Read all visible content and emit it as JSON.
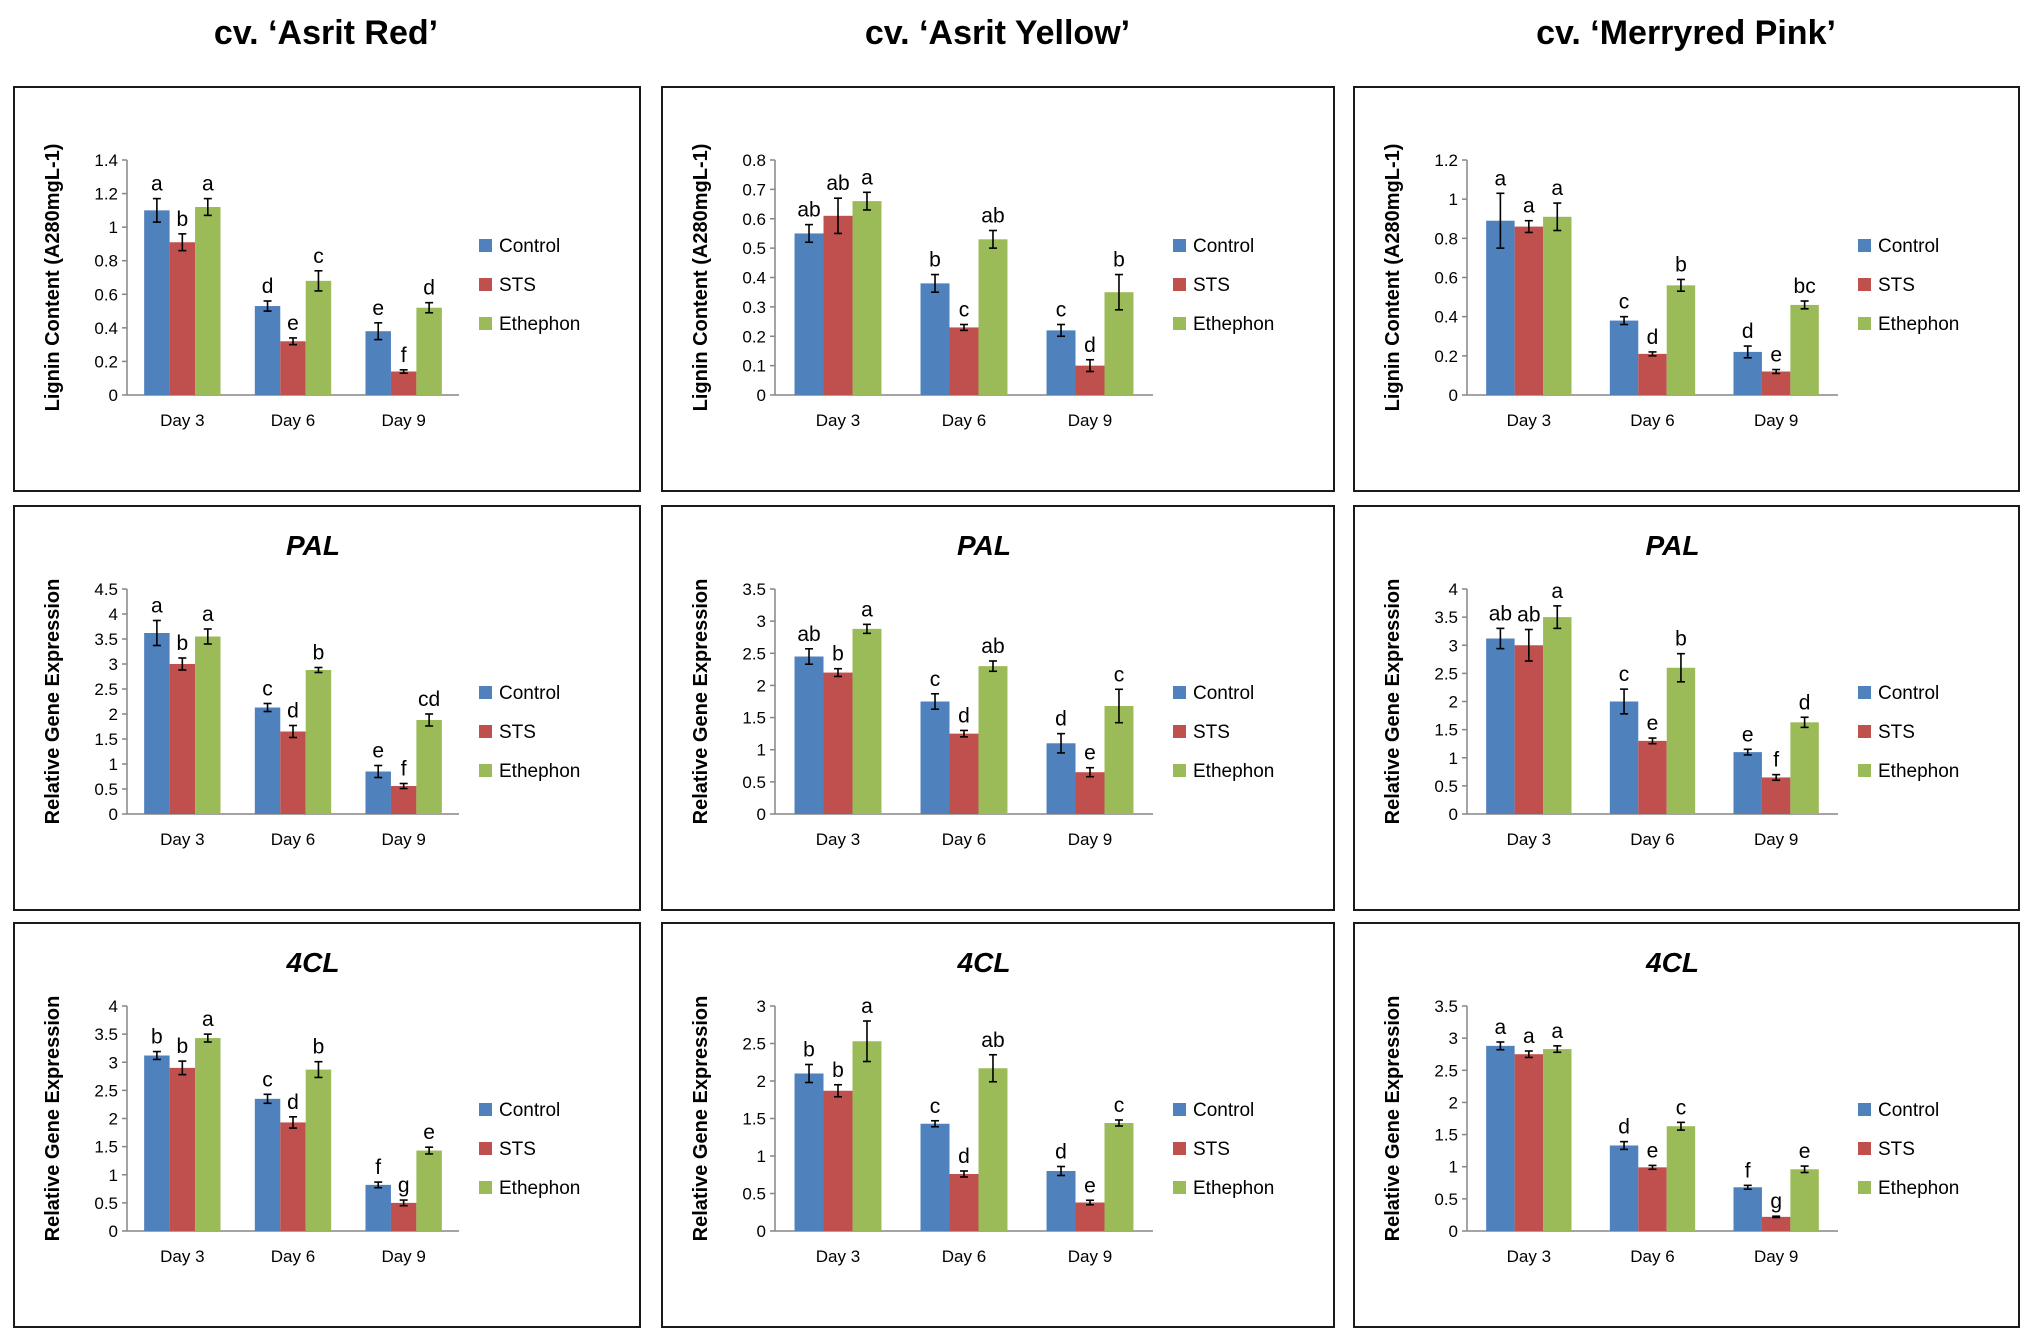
{
  "column_titles": [
    "cv. ‘Asrit Red’",
    "cv. ‘Asrit Yellow’",
    "cv. ‘Merryred Pink’"
  ],
  "legend": [
    "Control",
    "STS",
    "Ethephon"
  ],
  "colors": {
    "Control": "#4f81bd",
    "STS": "#c0504d",
    "Ethephon": "#9bbb59"
  },
  "chart_data": [
    {
      "type": "bar",
      "cultivar": "cv. ‘Asrit Red’",
      "title": "",
      "ylabel": "Lignin Content (A280mgL-1)",
      "xlabel": "",
      "categories": [
        "Day 3",
        "Day 6",
        "Day 9"
      ],
      "ylim": [
        0,
        1.4
      ],
      "ytick_step": 0.2,
      "ytick_labels": [
        "0",
        "0.2",
        "0.4",
        "0.6",
        "0.8",
        "1",
        "1.2",
        "1.4"
      ],
      "series": [
        {
          "name": "Control",
          "values": [
            1.1,
            0.53,
            0.38
          ],
          "errors": [
            0.07,
            0.03,
            0.05
          ],
          "letters": [
            "a",
            "d",
            "e"
          ]
        },
        {
          "name": "STS",
          "values": [
            0.91,
            0.32,
            0.14
          ],
          "errors": [
            0.05,
            0.02,
            0.01
          ],
          "letters": [
            "b",
            "e",
            "f"
          ]
        },
        {
          "name": "Ethephon",
          "values": [
            1.12,
            0.68,
            0.52
          ],
          "errors": [
            0.05,
            0.06,
            0.03
          ],
          "letters": [
            "a",
            "c",
            "d"
          ]
        }
      ]
    },
    {
      "type": "bar",
      "cultivar": "cv. ‘Asrit Yellow’",
      "title": "",
      "ylabel": "Lignin Content (A280mgL-1)",
      "xlabel": "",
      "categories": [
        "Day 3",
        "Day 6",
        "Day 9"
      ],
      "ylim": [
        0,
        0.8
      ],
      "ytick_step": 0.1,
      "ytick_labels": [
        "0",
        "0.1",
        "0.2",
        "0.3",
        "0.4",
        "0.5",
        "0.6",
        "0.7",
        "0.8"
      ],
      "series": [
        {
          "name": "Control",
          "values": [
            0.55,
            0.38,
            0.22
          ],
          "errors": [
            0.03,
            0.03,
            0.02
          ],
          "letters": [
            "ab",
            "b",
            "c"
          ]
        },
        {
          "name": "STS",
          "values": [
            0.61,
            0.23,
            0.1
          ],
          "errors": [
            0.06,
            0.01,
            0.02
          ],
          "letters": [
            "ab",
            "c",
            "d"
          ]
        },
        {
          "name": "Ethephon",
          "values": [
            0.66,
            0.53,
            0.35
          ],
          "errors": [
            0.03,
            0.03,
            0.06
          ],
          "letters": [
            "a",
            "ab",
            "b"
          ]
        }
      ]
    },
    {
      "type": "bar",
      "cultivar": "cv. ‘Merryred Pink’",
      "title": "",
      "ylabel": "Lignin Content (A280mgL-1)",
      "xlabel": "",
      "categories": [
        "Day 3",
        "Day 6",
        "Day 9"
      ],
      "ylim": [
        0,
        1.2
      ],
      "ytick_step": 0.2,
      "ytick_labels": [
        "0",
        "0.2",
        "0.4",
        "0.6",
        "0.8",
        "1",
        "1.2"
      ],
      "series": [
        {
          "name": "Control",
          "values": [
            0.89,
            0.38,
            0.22
          ],
          "errors": [
            0.14,
            0.02,
            0.03
          ],
          "letters": [
            "a",
            "c",
            "d"
          ]
        },
        {
          "name": "STS",
          "values": [
            0.86,
            0.21,
            0.12
          ],
          "errors": [
            0.03,
            0.01,
            0.01
          ],
          "letters": [
            "a",
            "d",
            "e"
          ]
        },
        {
          "name": "Ethephon",
          "values": [
            0.91,
            0.56,
            0.46
          ],
          "errors": [
            0.07,
            0.03,
            0.02
          ],
          "letters": [
            "a",
            "b",
            "bc"
          ]
        }
      ]
    },
    {
      "type": "bar",
      "cultivar": "cv. ‘Asrit Red’",
      "title": "PAL",
      "ylabel": "Relative Gene Expression",
      "xlabel": "",
      "categories": [
        "Day 3",
        "Day 6",
        "Day 9"
      ],
      "ylim": [
        0,
        4.5
      ],
      "ytick_step": 0.5,
      "ytick_labels": [
        "0",
        "0.5",
        "1",
        "1.5",
        "2",
        "2.5",
        "3",
        "3.5",
        "4",
        "4.5"
      ],
      "series": [
        {
          "name": "Control",
          "values": [
            3.62,
            2.13,
            0.85
          ],
          "errors": [
            0.25,
            0.08,
            0.12
          ],
          "letters": [
            "a",
            "c",
            "e"
          ]
        },
        {
          "name": "STS",
          "values": [
            3.0,
            1.65,
            0.56
          ],
          "errors": [
            0.12,
            0.12,
            0.05
          ],
          "letters": [
            "b",
            "d",
            "f"
          ]
        },
        {
          "name": "Ethephon",
          "values": [
            3.55,
            2.88,
            1.88
          ],
          "errors": [
            0.15,
            0.05,
            0.12
          ],
          "letters": [
            "a",
            "b",
            "cd"
          ]
        }
      ]
    },
    {
      "type": "bar",
      "cultivar": "cv. ‘Asrit Yellow’",
      "title": "PAL",
      "ylabel": "Relative Gene Expression",
      "xlabel": "",
      "categories": [
        "Day 3",
        "Day 6",
        "Day 9"
      ],
      "ylim": [
        0,
        3.5
      ],
      "ytick_step": 0.5,
      "ytick_labels": [
        "0",
        "0.5",
        "1",
        "1.5",
        "2",
        "2.5",
        "3",
        "3.5"
      ],
      "series": [
        {
          "name": "Control",
          "values": [
            2.45,
            1.75,
            1.1
          ],
          "errors": [
            0.12,
            0.12,
            0.15
          ],
          "letters": [
            "ab",
            "c",
            "d"
          ]
        },
        {
          "name": "STS",
          "values": [
            2.2,
            1.25,
            0.65
          ],
          "errors": [
            0.06,
            0.05,
            0.07
          ],
          "letters": [
            "b",
            "d",
            "e"
          ]
        },
        {
          "name": "Ethephon",
          "values": [
            2.88,
            2.3,
            1.68
          ],
          "errors": [
            0.07,
            0.08,
            0.26
          ],
          "letters": [
            "a",
            "ab",
            "c"
          ]
        }
      ]
    },
    {
      "type": "bar",
      "cultivar": "cv. ‘Merryred Pink’",
      "title": "PAL",
      "ylabel": "Relative Gene Expression",
      "xlabel": "",
      "categories": [
        "Day 3",
        "Day 6",
        "Day 9"
      ],
      "ylim": [
        0,
        4
      ],
      "ytick_step": 0.5,
      "ytick_labels": [
        "0",
        "0.5",
        "1",
        "1.5",
        "2",
        "2.5",
        "3",
        "3.5",
        "4"
      ],
      "series": [
        {
          "name": "Control",
          "values": [
            3.12,
            2.0,
            1.1
          ],
          "errors": [
            0.18,
            0.22,
            0.05
          ],
          "letters": [
            "ab",
            "c",
            "e"
          ]
        },
        {
          "name": "STS",
          "values": [
            3.0,
            1.3,
            0.65
          ],
          "errors": [
            0.28,
            0.05,
            0.05
          ],
          "letters": [
            "ab",
            "e",
            "f"
          ]
        },
        {
          "name": "Ethephon",
          "values": [
            3.5,
            2.6,
            1.63
          ],
          "errors": [
            0.2,
            0.25,
            0.09
          ],
          "letters": [
            "a",
            "b",
            "d"
          ]
        }
      ]
    },
    {
      "type": "bar",
      "cultivar": "cv. ‘Asrit Red’",
      "title": "4CL",
      "ylabel": "Relative Gene Expression",
      "xlabel": "",
      "categories": [
        "Day 3",
        "Day 6",
        "Day 9"
      ],
      "ylim": [
        0,
        4
      ],
      "ytick_step": 0.5,
      "ytick_labels": [
        "0",
        "0.5",
        "1",
        "1.5",
        "2",
        "2.5",
        "3",
        "3.5",
        "4"
      ],
      "series": [
        {
          "name": "Control",
          "values": [
            3.12,
            2.35,
            0.82
          ],
          "errors": [
            0.07,
            0.08,
            0.05
          ],
          "letters": [
            "b",
            "c",
            "f"
          ]
        },
        {
          "name": "STS",
          "values": [
            2.9,
            1.93,
            0.5
          ],
          "errors": [
            0.12,
            0.1,
            0.05
          ],
          "letters": [
            "b",
            "d",
            "g"
          ]
        },
        {
          "name": "Ethephon",
          "values": [
            3.43,
            2.87,
            1.43
          ],
          "errors": [
            0.07,
            0.14,
            0.06
          ],
          "letters": [
            "a",
            "b",
            "e"
          ]
        }
      ]
    },
    {
      "type": "bar",
      "cultivar": "cv. ‘Asrit Yellow’",
      "title": "4CL",
      "ylabel": "Relative Gene Expression",
      "xlabel": "",
      "categories": [
        "Day 3",
        "Day 6",
        "Day 9"
      ],
      "ylim": [
        0,
        3
      ],
      "ytick_step": 0.5,
      "ytick_labels": [
        "0",
        "0.5",
        "1",
        "1.5",
        "2",
        "2.5",
        "3"
      ],
      "series": [
        {
          "name": "Control",
          "values": [
            2.1,
            1.43,
            0.8
          ],
          "errors": [
            0.12,
            0.04,
            0.06
          ],
          "letters": [
            "b",
            "c",
            "d"
          ]
        },
        {
          "name": "STS",
          "values": [
            1.87,
            0.76,
            0.38
          ],
          "errors": [
            0.08,
            0.04,
            0.03
          ],
          "letters": [
            "b",
            "d",
            "e"
          ]
        },
        {
          "name": "Ethephon",
          "values": [
            2.53,
            2.17,
            1.44
          ],
          "errors": [
            0.27,
            0.18,
            0.04
          ],
          "letters": [
            "a",
            "ab",
            "c"
          ]
        }
      ]
    },
    {
      "type": "bar",
      "cultivar": "cv. ‘Merryred Pink’",
      "title": "4CL",
      "ylabel": "Relative Gene Expression",
      "xlabel": "",
      "categories": [
        "Day 3",
        "Day 6",
        "Day 9"
      ],
      "ylim": [
        0,
        3.5
      ],
      "ytick_step": 0.5,
      "ytick_labels": [
        "0",
        "0.5",
        "1",
        "1.5",
        "2",
        "2.5",
        "3",
        "3.5"
      ],
      "series": [
        {
          "name": "Control",
          "values": [
            2.88,
            1.33,
            0.68
          ],
          "errors": [
            0.06,
            0.06,
            0.03
          ],
          "letters": [
            "a",
            "d",
            "f"
          ]
        },
        {
          "name": "STS",
          "values": [
            2.75,
            0.99,
            0.22
          ],
          "errors": [
            0.05,
            0.03,
            0.01
          ],
          "letters": [
            "a",
            "e",
            "g"
          ]
        },
        {
          "name": "Ethephon",
          "values": [
            2.83,
            1.63,
            0.96
          ],
          "errors": [
            0.05,
            0.06,
            0.05
          ],
          "letters": [
            "a",
            "c",
            "e"
          ]
        }
      ]
    }
  ]
}
